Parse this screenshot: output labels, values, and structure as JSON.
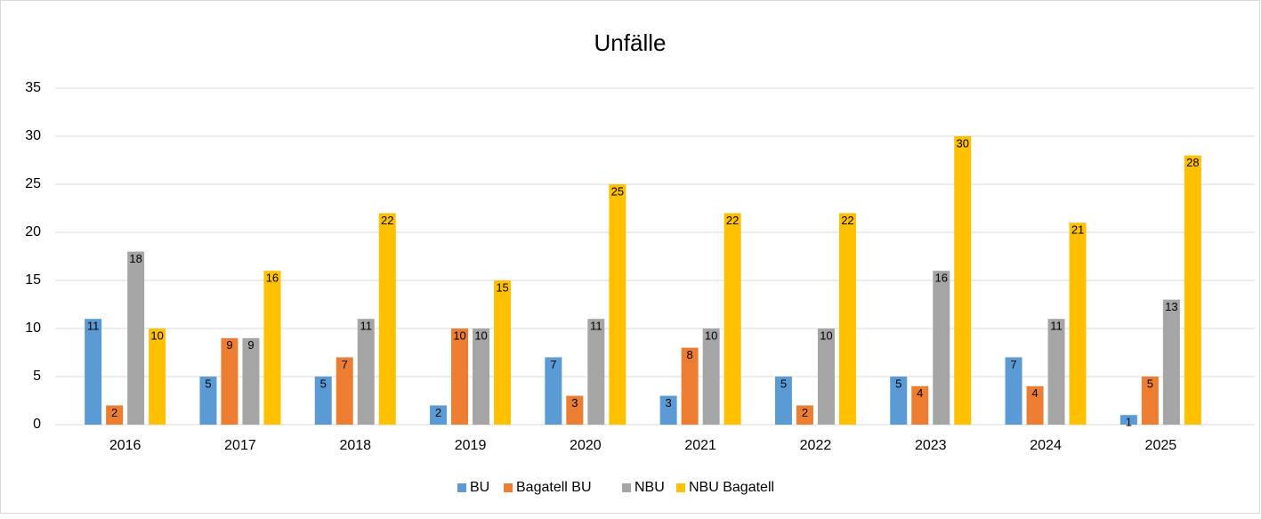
{
  "chart_data": {
    "type": "bar",
    "title": "Unfälle",
    "categories": [
      "2016",
      "2017",
      "2018",
      "2019",
      "2020",
      "2021",
      "2022",
      "2023",
      "2024",
      "2025"
    ],
    "series": [
      {
        "name": "BU",
        "color": "#5b9bd5",
        "values": [
          11,
          5,
          5,
          2,
          7,
          3,
          5,
          5,
          7,
          1
        ]
      },
      {
        "name": "Bagatell BU",
        "color": "#ed7d31",
        "values": [
          2,
          9,
          7,
          10,
          3,
          8,
          2,
          4,
          4,
          5
        ]
      },
      {
        "name": "NBU",
        "color": "#a5a5a5",
        "values": [
          18,
          9,
          11,
          10,
          11,
          10,
          10,
          16,
          11,
          13
        ]
      },
      {
        "name": "NBU Bagatell",
        "color": "#ffc000",
        "values": [
          10,
          16,
          22,
          15,
          25,
          22,
          22,
          30,
          21,
          28
        ]
      }
    ],
    "ylim": [
      0,
      35
    ],
    "yticks": [
      0,
      5,
      10,
      15,
      20,
      25,
      30,
      35
    ],
    "grid": true,
    "legend": "bottom"
  }
}
